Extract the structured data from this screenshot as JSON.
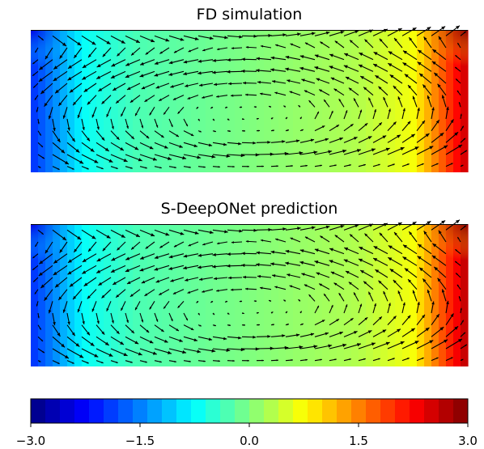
{
  "chart_data": [
    {
      "type": "heatmap",
      "title": "FD simulation",
      "overlay": "quiver",
      "colormap": "jet",
      "field_profile": [
        -2.0,
        -0.7,
        -0.3,
        -0.15,
        0.0,
        0.15,
        0.3,
        0.7,
        2.6
      ],
      "flow": "clockwise recirculating vortex"
    },
    {
      "type": "heatmap",
      "title": "S-DeepONet prediction",
      "overlay": "quiver",
      "colormap": "jet",
      "field_profile": [
        -2.0,
        -0.7,
        -0.3,
        -0.15,
        0.0,
        0.15,
        0.3,
        0.7,
        2.7
      ],
      "flow": "clockwise recirculating vortex"
    }
  ],
  "colorbar": {
    "vmin": -3.0,
    "vmax": 3.0,
    "levels": 30,
    "ticks": [
      "−3.0",
      "−1.5",
      "0.0",
      "1.5",
      "3.0"
    ],
    "tick_values": [
      -3.0,
      -1.5,
      0.0,
      1.5,
      3.0
    ]
  }
}
